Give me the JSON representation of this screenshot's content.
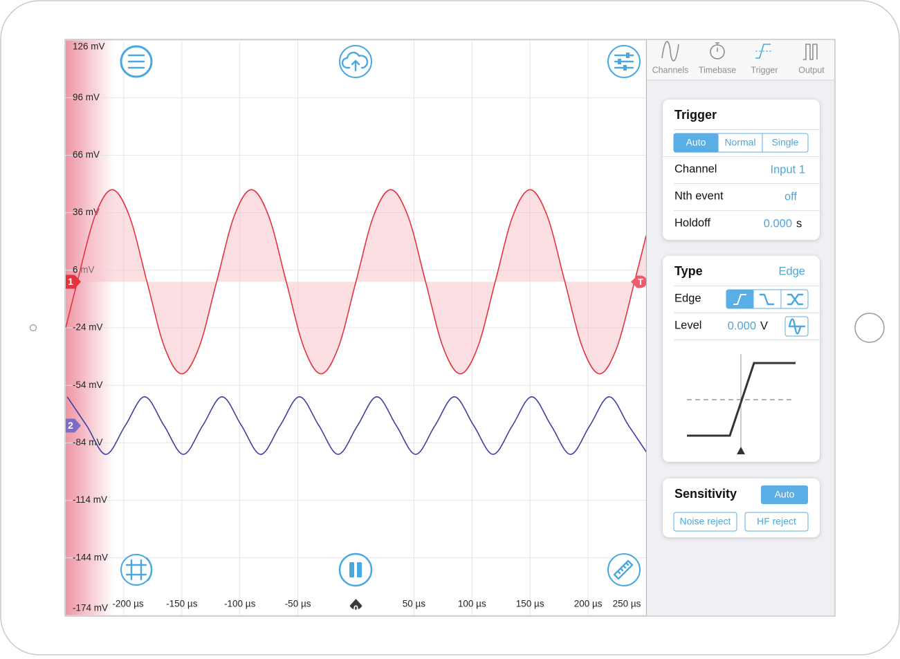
{
  "chart_data": {
    "type": "line",
    "xlim": [
      -250,
      250
    ],
    "xticks": [
      {
        "value": -200,
        "label": "-200 µs"
      },
      {
        "value": -150,
        "label": "-150 µs"
      },
      {
        "value": -100,
        "label": "-100 µs"
      },
      {
        "value": -50,
        "label": "-50 µs"
      },
      {
        "value": 50,
        "label": "50 µs"
      },
      {
        "value": 100,
        "label": "100 µs"
      },
      {
        "value": 150,
        "label": "150 µs"
      },
      {
        "value": 200,
        "label": "200 µs"
      },
      {
        "value": 250,
        "label": "250 µs"
      }
    ],
    "ylim": [
      -174,
      126
    ],
    "yticks": [
      {
        "value": 126,
        "label": "126 mV"
      },
      {
        "value": 96,
        "label": "96 mV"
      },
      {
        "value": 66,
        "label": "66 mV"
      },
      {
        "value": 36,
        "label": "36 mV"
      },
      {
        "value": 6,
        "label": "6 mV"
      },
      {
        "value": -24,
        "label": "-24 mV"
      },
      {
        "value": -54,
        "label": "-54 mV"
      },
      {
        "value": -84,
        "label": "-84 mV"
      },
      {
        "value": -114,
        "label": "-114 mV"
      },
      {
        "value": -144,
        "label": "-144 mV"
      },
      {
        "value": -174,
        "label": "-174 mV"
      }
    ],
    "grid": true,
    "series": [
      {
        "name": "1",
        "color": "#e5323f",
        "marker_color": "#e5323f",
        "fill": "#f6b8c2",
        "offset": 0,
        "x": [
          -250,
          -240,
          -225,
          -210,
          -195,
          -180,
          -165,
          -150,
          -135,
          -120,
          -105,
          -90,
          -75,
          -60,
          -45,
          -30,
          -15,
          0,
          15,
          30,
          45,
          60,
          75,
          90,
          105,
          120,
          135,
          150,
          165,
          180,
          195,
          210,
          225,
          240,
          250
        ],
        "values": [
          -24,
          0,
          34,
          48,
          34,
          0,
          -34,
          -48,
          -34,
          0,
          34,
          48,
          34,
          0,
          -34,
          -48,
          -34,
          0,
          34,
          48,
          34,
          0,
          -34,
          -48,
          -34,
          0,
          34,
          48,
          34,
          0,
          -34,
          -48,
          -34,
          0,
          24
        ]
      },
      {
        "name": "2",
        "color": "#3b3f9c",
        "marker_color": "#7d6cc4",
        "offset": -75,
        "x": [
          -248.7,
          -232.0,
          -215.4,
          -198.7,
          -182.0,
          -165.3,
          -148.6,
          -132.0,
          -115.3,
          -98.6,
          -82.0,
          -65.3,
          -48.6,
          -31.9,
          -15.3,
          1.4,
          18.1,
          34.8,
          51.5,
          68.1,
          84.8,
          101.5,
          118.2,
          134.8,
          151.5,
          168.2,
          184.9,
          201.5,
          218.2,
          234.9,
          251.6
        ],
        "values": [
          -60,
          -75,
          -90,
          -75,
          -60,
          -75,
          -90,
          -75,
          -60,
          -75,
          -90,
          -75,
          -60,
          -75,
          -90,
          -75,
          -60,
          -75,
          -90,
          -75,
          -60,
          -75,
          -90,
          -75,
          -60,
          -75,
          -90,
          -75,
          -60,
          -75,
          -90
        ]
      }
    ],
    "trigger": {
      "label": "T",
      "level": 0,
      "color": "#ee5a6e",
      "time": 0,
      "time_color": "#3a3a3a"
    }
  },
  "tabs": [
    "Channels",
    "Timebase",
    "Trigger",
    "Output"
  ],
  "trigger_card": {
    "title": "Trigger",
    "modes": [
      "Auto",
      "Normal",
      "Single"
    ],
    "rows": [
      [
        "Channel",
        "Input 1"
      ],
      [
        "Nth event",
        "off"
      ],
      [
        "Holdoff",
        "0.000",
        "s"
      ]
    ]
  },
  "type_card": {
    "title": "Type",
    "value": "Edge",
    "edge_label": "Edge",
    "level_label": "Level",
    "level_value": "0.000",
    "level_unit": "V"
  },
  "sensitivity_card": {
    "title": "Sensitivity",
    "mode": "Auto",
    "filters": [
      "Noise reject",
      "HF reject"
    ]
  }
}
